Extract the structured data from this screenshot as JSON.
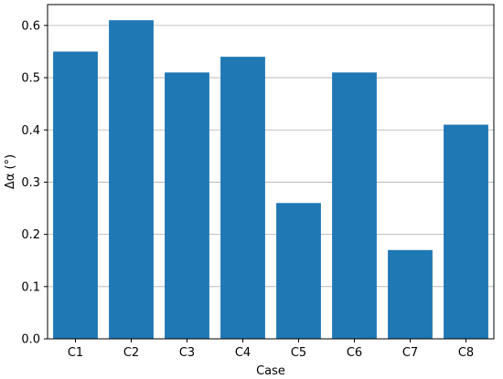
{
  "chart_data": {
    "type": "bar",
    "categories": [
      "C1",
      "C2",
      "C3",
      "C4",
      "C5",
      "C6",
      "C7",
      "C8"
    ],
    "values": [
      0.55,
      0.61,
      0.51,
      0.54,
      0.26,
      0.51,
      0.17,
      0.41
    ],
    "title": "",
    "xlabel": "Case",
    "ylabel": "Δα (°)",
    "ylim": [
      0,
      0.64
    ],
    "yticks": [
      "0.0",
      "0.1",
      "0.2",
      "0.3",
      "0.4",
      "0.5",
      "0.6"
    ],
    "grid": "horizontal",
    "bar_color": "#1f77b4",
    "grid_color": "#b0b0b0"
  }
}
